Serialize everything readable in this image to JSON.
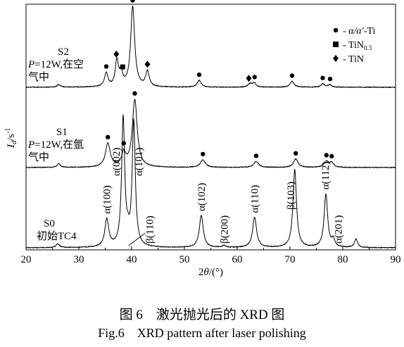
{
  "chart_data": {
    "type": "line",
    "xlabel": "2θ/(°)",
    "ylabel": "I_d/s^-1",
    "xlim": [
      20,
      90
    ],
    "xticks": [
      20,
      30,
      40,
      50,
      60,
      70,
      80,
      90
    ],
    "grid": false,
    "legend_position": "top-right",
    "legend": [
      {
        "marker": "circle",
        "label": "α/α′-Ti"
      },
      {
        "marker": "square",
        "label": "TiN",
        "sub": "0.3"
      },
      {
        "marker": "diamond",
        "label": "TiN"
      }
    ],
    "series": [
      {
        "name": "S0",
        "label_lines": [
          "S0",
          "初始TC4"
        ],
        "baseline": 0,
        "peaks": [
          {
            "x": 26.0,
            "h": 0.04,
            "w": 0.4
          },
          {
            "x": 35.3,
            "h": 0.3,
            "w": 0.45
          },
          {
            "x": 38.4,
            "h": 1.4,
            "w": 0.35
          },
          {
            "x": 39.3,
            "h": 0.08,
            "w": 0.3
          },
          {
            "x": 40.4,
            "h": 1.36,
            "w": 0.35
          },
          {
            "x": 53.2,
            "h": 0.35,
            "w": 0.45
          },
          {
            "x": 57.5,
            "h": 0.02,
            "w": 0.4
          },
          {
            "x": 63.3,
            "h": 0.33,
            "w": 0.45
          },
          {
            "x": 70.9,
            "h": 0.85,
            "w": 0.4
          },
          {
            "x": 76.8,
            "h": 0.58,
            "w": 0.4
          },
          {
            "x": 78.2,
            "h": 0.08,
            "w": 0.35
          },
          {
            "x": 82.5,
            "h": 0.09,
            "w": 0.35
          }
        ],
        "annotations": [
          {
            "x": 35.3,
            "text": "α(100)"
          },
          {
            "x": 38.4,
            "text": "α(002)"
          },
          {
            "x": 40.4,
            "text": "α(101)"
          },
          {
            "x": 39.5,
            "text": "β(110)"
          },
          {
            "x": 53.2,
            "text": "α(102)"
          },
          {
            "x": 57.5,
            "text": "β(200)"
          },
          {
            "x": 63.3,
            "text": "α(110)"
          },
          {
            "x": 70.9,
            "text": "β(103)"
          },
          {
            "x": 76.8,
            "text": "α(112)"
          },
          {
            "x": 78.2,
            "text": "α(201)"
          }
        ]
      },
      {
        "name": "S1",
        "label_lines": [
          "S1",
          "P=12W,在氩",
          "气中"
        ],
        "baseline": 0,
        "peaks": [
          {
            "x": 26.2,
            "h": 0.04,
            "w": 0.4
          },
          {
            "x": 35.5,
            "h": 0.28,
            "w": 0.55
          },
          {
            "x": 38.5,
            "h": 0.16,
            "w": 0.45
          },
          {
            "x": 40.6,
            "h": 0.8,
            "w": 0.55
          },
          {
            "x": 53.5,
            "h": 0.09,
            "w": 0.55
          },
          {
            "x": 63.6,
            "h": 0.07,
            "w": 0.55
          },
          {
            "x": 71.1,
            "h": 0.1,
            "w": 0.5
          },
          {
            "x": 76.9,
            "h": 0.07,
            "w": 0.55
          },
          {
            "x": 77.9,
            "h": 0.05,
            "w": 0.45
          }
        ],
        "markers": [
          {
            "x": 35.5,
            "type": "circle"
          },
          {
            "x": 38.5,
            "type": "circle"
          },
          {
            "x": 40.6,
            "type": "circle"
          },
          {
            "x": 53.5,
            "type": "circle"
          },
          {
            "x": 63.6,
            "type": "circle"
          },
          {
            "x": 71.1,
            "type": "circle"
          },
          {
            "x": 76.9,
            "type": "circle"
          },
          {
            "x": 77.9,
            "type": "circle"
          }
        ]
      },
      {
        "name": "S2",
        "label_lines": [
          "S2",
          "P=12W,在空",
          "气中"
        ],
        "baseline": 0,
        "peaks": [
          {
            "x": 26.2,
            "h": 0.03,
            "w": 0.4
          },
          {
            "x": 35.2,
            "h": 0.16,
            "w": 0.4
          },
          {
            "x": 37.2,
            "h": 0.3,
            "w": 0.35
          },
          {
            "x": 38.0,
            "h": 0.16,
            "w": 0.35
          },
          {
            "x": 40.2,
            "h": 0.95,
            "w": 0.45
          },
          {
            "x": 43.0,
            "h": 0.18,
            "w": 0.4
          },
          {
            "x": 52.8,
            "h": 0.08,
            "w": 0.45
          },
          {
            "x": 62.4,
            "h": 0.04,
            "w": 0.4
          },
          {
            "x": 63.2,
            "h": 0.05,
            "w": 0.4
          },
          {
            "x": 70.4,
            "h": 0.07,
            "w": 0.45
          },
          {
            "x": 76.2,
            "h": 0.04,
            "w": 0.4
          },
          {
            "x": 77.5,
            "h": 0.03,
            "w": 0.4
          }
        ],
        "markers": [
          {
            "x": 35.2,
            "type": "circle"
          },
          {
            "x": 37.1,
            "type": "diamond"
          },
          {
            "x": 38.3,
            "type": "square"
          },
          {
            "x": 40.2,
            "type": "circle"
          },
          {
            "x": 43.0,
            "type": "diamond"
          },
          {
            "x": 52.8,
            "type": "circle"
          },
          {
            "x": 62.2,
            "type": "diamond"
          },
          {
            "x": 63.3,
            "type": "circle"
          },
          {
            "x": 70.4,
            "type": "circle"
          },
          {
            "x": 76.2,
            "type": "circle"
          },
          {
            "x": 77.6,
            "type": "circle"
          }
        ]
      }
    ]
  },
  "caption": {
    "cn": "图 6　激光抛光后的 XRD 图",
    "en": "Fig.6　XRD pattern after laser polishing"
  }
}
